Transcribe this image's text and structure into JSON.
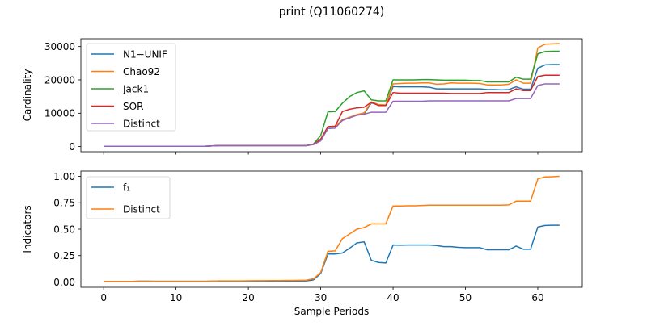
{
  "figure": {
    "title": "print (Q11060274)"
  },
  "chart_data": [
    {
      "type": "line",
      "ylabel": "Cardinality",
      "xlabel": "",
      "xlim": [
        -3.15,
        66.15
      ],
      "ylim": [
        -1540,
        32340
      ],
      "xticks": [
        0,
        10,
        20,
        30,
        40,
        50,
        60
      ],
      "xtick_labels": [
        "",
        "",
        "",
        "",
        "",
        "",
        ""
      ],
      "yticks": [
        0,
        10000,
        20000,
        30000
      ],
      "ytick_labels": [
        "0",
        "10000",
        "20000",
        "30000"
      ],
      "legend": "upper-left",
      "grid": false,
      "x": [
        0,
        1,
        2,
        3,
        4,
        5,
        6,
        7,
        8,
        9,
        10,
        11,
        12,
        13,
        14,
        15,
        16,
        17,
        18,
        19,
        20,
        21,
        22,
        23,
        24,
        25,
        26,
        27,
        28,
        29,
        30,
        31,
        32,
        33,
        34,
        35,
        36,
        37,
        38,
        39,
        40,
        41,
        42,
        43,
        44,
        45,
        46,
        47,
        48,
        49,
        50,
        51,
        52,
        53,
        54,
        55,
        56,
        57,
        58,
        59,
        60,
        61,
        62,
        63
      ],
      "series": [
        {
          "name": "N1−UNIF",
          "color": "#1f77b4",
          "values": [
            100,
            100,
            100,
            100,
            100,
            100,
            100,
            100,
            100,
            100,
            100,
            100,
            100,
            100,
            100,
            200,
            300,
            300,
            300,
            300,
            300,
            300,
            300,
            300,
            300,
            300,
            300,
            300,
            300,
            700,
            2000,
            5800,
            5900,
            7800,
            8800,
            9400,
            9800,
            13100,
            12500,
            12400,
            18000,
            17900,
            17900,
            17900,
            17900,
            17800,
            17300,
            17300,
            17300,
            17300,
            17300,
            17300,
            17300,
            17100,
            17100,
            17000,
            17100,
            17900,
            17200,
            17200,
            23500,
            24500,
            24600,
            24600
          ]
        },
        {
          "name": "Chao92",
          "color": "#ff7f0e",
          "values": [
            100,
            100,
            100,
            100,
            100,
            100,
            100,
            100,
            100,
            100,
            100,
            100,
            100,
            100,
            100,
            200,
            300,
            300,
            300,
            300,
            300,
            300,
            300,
            300,
            300,
            300,
            300,
            300,
            300,
            700,
            2200,
            5900,
            6000,
            8100,
            8800,
            9600,
            10100,
            13400,
            12600,
            12500,
            18800,
            18900,
            19000,
            19000,
            19100,
            19100,
            18700,
            18800,
            19100,
            19000,
            19000,
            19000,
            18900,
            18500,
            18500,
            18500,
            18700,
            20000,
            19000,
            19000,
            29600,
            30700,
            30800,
            30900
          ]
        },
        {
          "name": "Jack1",
          "color": "#2ca02c",
          "values": [
            100,
            100,
            100,
            100,
            100,
            100,
            100,
            100,
            100,
            100,
            100,
            100,
            100,
            100,
            100,
            200,
            300,
            300,
            300,
            300,
            300,
            300,
            300,
            300,
            300,
            300,
            300,
            300,
            300,
            800,
            3300,
            10400,
            10500,
            13000,
            15000,
            16200,
            16700,
            14000,
            13700,
            13700,
            20000,
            20000,
            20000,
            20000,
            20100,
            20100,
            20000,
            19900,
            19900,
            19900,
            19900,
            19800,
            19800,
            19400,
            19400,
            19400,
            19400,
            20800,
            20200,
            20200,
            27800,
            28500,
            28600,
            28600
          ]
        },
        {
          "name": "SOR",
          "color": "#d62728",
          "values": [
            100,
            100,
            100,
            100,
            100,
            100,
            100,
            100,
            100,
            100,
            100,
            100,
            100,
            100,
            100,
            200,
            300,
            300,
            300,
            300,
            300,
            300,
            300,
            300,
            300,
            300,
            300,
            300,
            300,
            700,
            2200,
            6000,
            6100,
            10500,
            11200,
            11600,
            11800,
            13300,
            12300,
            12300,
            16200,
            16000,
            16000,
            16000,
            16000,
            16000,
            16000,
            16000,
            15900,
            15900,
            15900,
            15900,
            15900,
            16200,
            16200,
            16200,
            16200,
            17300,
            16800,
            16800,
            21000,
            21400,
            21400,
            21400
          ]
        },
        {
          "name": "Distinct",
          "color": "#9467bd",
          "values": [
            100,
            100,
            100,
            100,
            100,
            100,
            100,
            100,
            100,
            100,
            100,
            100,
            100,
            100,
            100,
            200,
            300,
            300,
            300,
            300,
            300,
            300,
            300,
            300,
            300,
            300,
            300,
            300,
            300,
            600,
            1700,
            5400,
            5500,
            7900,
            8600,
            9400,
            9700,
            10300,
            10300,
            10300,
            13600,
            13600,
            13600,
            13600,
            13600,
            13700,
            13700,
            13700,
            13700,
            13700,
            13700,
            13700,
            13700,
            13700,
            13700,
            13700,
            13700,
            14400,
            14400,
            14400,
            18300,
            18800,
            18800,
            18800
          ]
        }
      ]
    },
    {
      "type": "line",
      "ylabel": "Indicators",
      "xlabel": "Sample Periods",
      "xlim": [
        -3.15,
        66.15
      ],
      "ylim": [
        -0.05,
        1.05
      ],
      "xticks": [
        0,
        10,
        20,
        30,
        40,
        50,
        60
      ],
      "xtick_labels": [
        "0",
        "10",
        "20",
        "30",
        "40",
        "50",
        "60"
      ],
      "yticks": [
        0,
        0.25,
        0.5,
        0.75,
        1
      ],
      "ytick_labels": [
        "0.00",
        "0.25",
        "0.50",
        "0.75",
        "1.00"
      ],
      "legend": "upper-left",
      "grid": false,
      "x": [
        0,
        1,
        2,
        3,
        4,
        5,
        6,
        7,
        8,
        9,
        10,
        11,
        12,
        13,
        14,
        15,
        16,
        17,
        18,
        19,
        20,
        21,
        22,
        23,
        24,
        25,
        26,
        27,
        28,
        29,
        30,
        31,
        32,
        33,
        34,
        35,
        36,
        37,
        38,
        39,
        40,
        41,
        42,
        43,
        44,
        45,
        46,
        47,
        48,
        49,
        50,
        51,
        52,
        53,
        54,
        55,
        56,
        57,
        58,
        59,
        60,
        61,
        62,
        63
      ],
      "series": [
        {
          "name": "f₁",
          "color": "#1f77b4",
          "values": [
            0.005,
            0.005,
            0.005,
            0.005,
            0.005,
            0.007,
            0.007,
            0.006,
            0.006,
            0.006,
            0.006,
            0.006,
            0.006,
            0.006,
            0.006,
            0.007,
            0.008,
            0.008,
            0.008,
            0.008,
            0.008,
            0.008,
            0.008,
            0.008,
            0.009,
            0.009,
            0.009,
            0.009,
            0.01,
            0.02,
            0.08,
            0.265,
            0.265,
            0.275,
            0.32,
            0.37,
            0.38,
            0.205,
            0.185,
            0.18,
            0.35,
            0.348,
            0.35,
            0.35,
            0.35,
            0.35,
            0.345,
            0.335,
            0.335,
            0.328,
            0.325,
            0.325,
            0.325,
            0.305,
            0.305,
            0.305,
            0.305,
            0.34,
            0.31,
            0.31,
            0.52,
            0.535,
            0.537,
            0.537
          ]
        },
        {
          "name": "Distinct",
          "color": "#ff7f0e",
          "values": [
            0.005,
            0.005,
            0.005,
            0.005,
            0.005,
            0.007,
            0.007,
            0.006,
            0.006,
            0.006,
            0.006,
            0.006,
            0.006,
            0.006,
            0.006,
            0.008,
            0.01,
            0.01,
            0.01,
            0.01,
            0.011,
            0.012,
            0.012,
            0.013,
            0.013,
            0.014,
            0.014,
            0.015,
            0.017,
            0.03,
            0.09,
            0.29,
            0.295,
            0.41,
            0.455,
            0.5,
            0.515,
            0.55,
            0.55,
            0.55,
            0.72,
            0.72,
            0.722,
            0.722,
            0.724,
            0.727,
            0.727,
            0.727,
            0.727,
            0.727,
            0.727,
            0.727,
            0.727,
            0.727,
            0.727,
            0.727,
            0.73,
            0.765,
            0.765,
            0.765,
            0.975,
            0.995,
            0.997,
            1.0
          ]
        }
      ]
    }
  ]
}
